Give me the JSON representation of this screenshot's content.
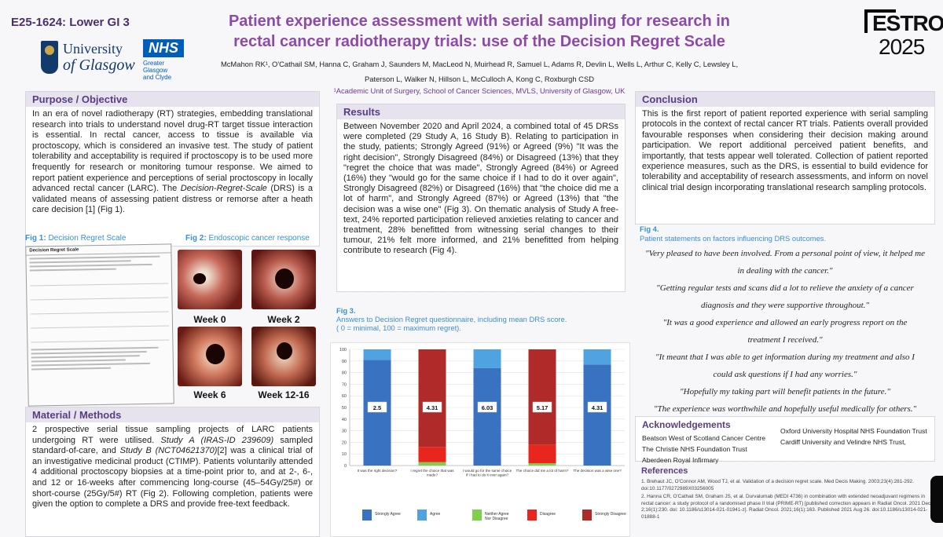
{
  "header": {
    "code": "E25-1624: Lower GI 3",
    "title_line1": "Patient experience assessment with serial sampling for research in",
    "title_line2": "rectal cancer radiotherapy trials: use of the Decision Regret Scale",
    "authors": "McMahon RK¹, O'Cathail SM, Hanna C, Graham J, Saunders M, MacLeod N, Muirhead R, Samuel L, Adams R, Devlin L, Wells L, Arthur C, Kelly C, Lewsley L, Paterson L, Walker N, Hillson L, McCulloch A, Kong C, Roxburgh CSD",
    "affiliation": "¹Academic Unit of Surgery, School of Cancer Sciences, MVLS, University of Glasgow, UK",
    "uog_line1": "University",
    "uog_line2": "of Glasgow",
    "nhs": "NHS",
    "nhs_sub1": "Greater Glasgow",
    "nhs_sub2": "and Clyde",
    "estro_top": "ESTRO",
    "estro_bottom": "2025"
  },
  "purpose": {
    "heading": "Purpose / Objective",
    "text_before": "In an era of novel radiotherapy (RT) strategies, embedding translational research into trials to understand novel drug-RT target tissue interaction is essential. In rectal cancer, access to tissue is available via proctoscopy, which is considered an invasive test. The study of patient tolerability and acceptability is required if proctoscopy is to be used more frequently for research or monitoring tumour response. We aimed to report patient experience and perceptions of serial proctoscopy in locally advanced rectal cancer (LARC). The ",
    "text_italic": "Decision-Regret-Scale",
    "text_after": " (DRS) is a validated means of assessing patient distress or remorse after a heath care decision [1] (Fig 1)."
  },
  "fig1": {
    "label": "Fig 1:",
    "caption": " Decision Regret Scale",
    "doc_title": "Decision Regret Scale"
  },
  "fig2": {
    "label": "Fig 2:",
    "caption": " Endoscopic cancer response",
    "weeks": [
      "Week 0",
      "Week 2",
      "Week 6",
      "Week 12-16"
    ]
  },
  "methods": {
    "heading": "Material / Methods",
    "t1": "2 prospective serial tissue sampling projects of LARC patients undergoing RT were utilised. ",
    "i1": "Study A (IRAS-ID 239609)",
    "t2": " sampled standard-of-care, and ",
    "i2": "Study B (NCT04621370)",
    "t3": "[2] was a clinical trial of an investigative medicinal product (CTIMP). Patients voluntarily attended 4 additional proctoscopy biopsies at a time-point prior to, and at 2-, 6-, and 12 or 16-weeks after commencing long-course (45–54Gy/25#) or short-course (25Gy/5#) RT (Fig 2). Following completion, patients were given the option to complete a DRS and provide free-text feedback."
  },
  "results": {
    "heading": "Results",
    "text": "Between November 2020 and April 2024, a combined total of 45 DRSs were completed (29 Study A, 16 Study B). Relating to participation in the study, patients; Strongly Agreed (91%) or Agreed (9%) \"It was the right decision\", Strongly Disagreed (84%) or Disagreed (13%) that they \"regret the choice that was made\", Strongly Agreed (84%) or Agreed (16%) they \"would go for the same choice if I had to do it over again\", Strongly Disagreed (82%) or Disagreed (16%) that \"the choice did me a lot of harm\", and Strongly Agreed (87%) or Agreed (13%) that \"the decision was a wise one\" (Fig 3). On thematic analysis of Study A free-text, 24% reported participation relieved anxieties relating to cancer and treatment, 28% benefitted from witnessing serial changes to their tumour, 21% felt more informed, and 21% benefitted from helping contribute to research (Fig 4)."
  },
  "fig3": {
    "label": "Fig 3.",
    "caption1": "Answers to Decision Regret questionnaire, including mean DRS score.",
    "caption2": "( 0 = minimal, 100 = maximum regret)."
  },
  "chart_data": {
    "type": "bar",
    "stacked": true,
    "categories": [
      "It was the right decision?",
      "I regret the choice that was made?",
      "I would go for the same choice if I had to do it over again?",
      "The choice did me a lot of harm?",
      "The decision was a wise one?"
    ],
    "series": [
      {
        "name": "Strongly Agree",
        "color": "#3a72c2",
        "values": [
          91,
          0,
          84,
          0,
          87
        ]
      },
      {
        "name": "Agree",
        "color": "#4fa3e0",
        "values": [
          9,
          0,
          16,
          0,
          13
        ]
      },
      {
        "name": "Neither Agree Nor Disagree",
        "color": "#7fcf4a",
        "values": [
          0,
          3,
          0,
          2,
          0
        ]
      },
      {
        "name": "Disagree",
        "color": "#e8261e",
        "values": [
          0,
          13,
          0,
          16,
          0
        ]
      },
      {
        "name": "Strongly Disagree",
        "color": "#b02a2a",
        "values": [
          0,
          84,
          0,
          82,
          0
        ]
      }
    ],
    "data_labels": [
      "2.5",
      "4.31",
      "6.03",
      "5.17",
      "4.31"
    ],
    "yticks": [
      0,
      10,
      20,
      30,
      40,
      50,
      60,
      70,
      80,
      90,
      100
    ],
    "ylim": [
      0,
      100
    ],
    "legend": "bottom",
    "grid": true
  },
  "conclusion": {
    "heading": "Conclusion",
    "text": "This is the first report of patient reported experience with serial sampling protocols in the context of rectal cancer RT trials. Patients overall provided favourable responses when considering their decision making around participation. We report additional perceived patient benefits, and importantly, that tests appear well tolerated. Collection of patient reported experience measures, such as the DRS, is essential to build evidence for tolerability and acceptability of research assessments, and inform on novel clinical trial design incorporating translational research sampling protocols."
  },
  "fig4": {
    "label": "Fig 4.",
    "caption": "Patient statements on factors influencing DRS outcomes.",
    "quotes": [
      "\"Very pleased to have been involved. From a personal point of view, it helped me in dealing with the cancer.\"",
      "\"Getting regular tests and scans did a lot to relieve the anxiety of a cancer diagnosis and they were supportive throughout.\"",
      "\"It was a good experience and allowed an early progress report on the treatment I received.\"",
      "\"It meant that I was able to get information during my treatment and also I could ask questions if I had any worries.\"",
      "\"Hopefully my taking part will benefit patients in the future.\"",
      "\"The experience was worthwhile and hopefully useful medically for others.\""
    ]
  },
  "acknowledgements": {
    "heading": "Acknowledgements",
    "left": [
      "Beatson West of Scotland Cancer Centre",
      "The Christie NHS Foundation Trust",
      "Aberdeen Royal Infirmary"
    ],
    "right": [
      "Oxford University Hospital NHS Foundation Trust",
      "Cardiff University and Velindre NHS Trust,"
    ]
  },
  "references": {
    "heading": "References",
    "items": [
      "1. Brehaut JC, O'Connor AM, Wood TJ, et al. Validation of a decision regret scale. Med Decis Making. 2003;23(4):281-292. doi:10.1177/0272989X03256005",
      "2. Hanna CR, O'Cathail SM, Graham JS, et al. Durvalumab (MEDI 4736) in combination with extended neoadjuvant regimens in rectal cancer: a study protocol of a randomised phase II trial (PRIME-RT) [published correction appears in Radiat Oncol. 2021 Dec 2;16(1):230. doi: 10.1186/s13014-021-01941-z]. Radiat Oncol. 2021;16(1):163. Published 2021 Aug 26. doi:10.1186/s13014-021-01888-1"
    ]
  }
}
